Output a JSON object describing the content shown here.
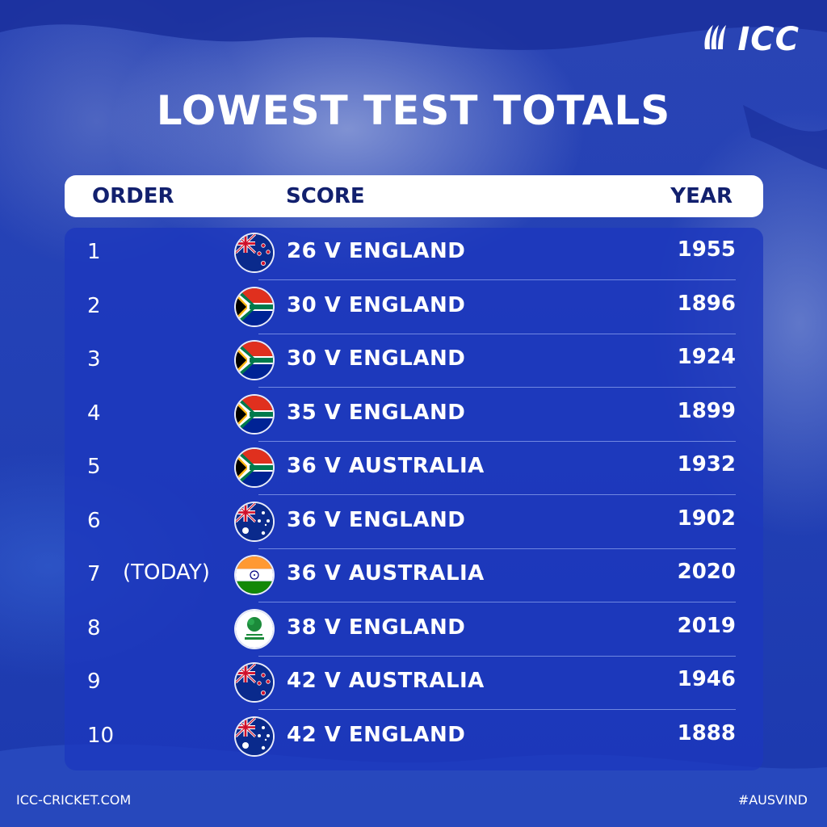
{
  "brand": {
    "logo_text": "ICC",
    "logo_icon": "icc-stumps-icon"
  },
  "title": "LOWEST TEST TOTALS",
  "header": {
    "order": "ORDER",
    "score": "SCORE",
    "year": "YEAR"
  },
  "rows": [
    {
      "order": "1",
      "note": "",
      "team": "new-zealand",
      "score": "26 V ENGLAND",
      "year": "1955"
    },
    {
      "order": "2",
      "note": "",
      "team": "south-africa",
      "score": "30 V ENGLAND",
      "year": "1896"
    },
    {
      "order": "3",
      "note": "",
      "team": "south-africa",
      "score": "30 V ENGLAND",
      "year": "1924"
    },
    {
      "order": "4",
      "note": "",
      "team": "south-africa",
      "score": "35 V ENGLAND",
      "year": "1899"
    },
    {
      "order": "5",
      "note": "",
      "team": "south-africa",
      "score": "36 V AUSTRALIA",
      "year": "1932"
    },
    {
      "order": "6",
      "note": "",
      "team": "australia",
      "score": "36 V ENGLAND",
      "year": "1902"
    },
    {
      "order": "7",
      "note": "(TODAY)",
      "team": "india",
      "score": "36 V AUSTRALIA",
      "year": "2020"
    },
    {
      "order": "8",
      "note": "",
      "team": "ireland",
      "score": "38 V ENGLAND",
      "year": "2019",
      "badge_text": "CRICKET IRELAND"
    },
    {
      "order": "9",
      "note": "",
      "team": "new-zealand",
      "score": "42 V AUSTRALIA",
      "year": "1946"
    },
    {
      "order": "10",
      "note": "",
      "team": "australia",
      "score": "42 V ENGLAND",
      "year": "1888"
    }
  ],
  "footer": {
    "website": "ICC-CRICKET.COM",
    "hashtag": "#AUSVIND"
  },
  "colors": {
    "background": "#1e3aa8",
    "header_text": "#12206e",
    "panel": "#1c37be"
  }
}
